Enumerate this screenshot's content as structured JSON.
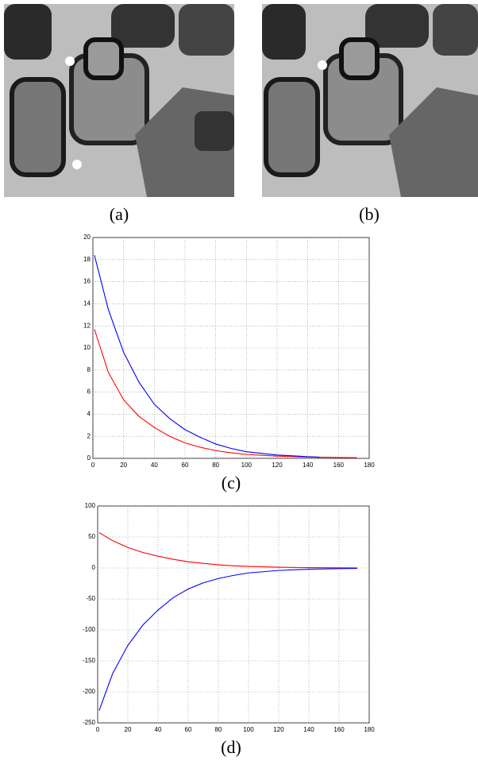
{
  "panels": [
    {
      "label": "(a)"
    },
    {
      "label": "(b)"
    }
  ],
  "chart_data": [
    {
      "type": "line",
      "label": "(c)",
      "x": [
        1,
        10,
        20,
        30,
        40,
        50,
        60,
        70,
        80,
        90,
        100,
        120,
        140,
        148,
        160,
        172
      ],
      "series": [
        {
          "color": "#ff0000",
          "values": [
            11.7,
            7.8,
            5.3,
            3.8,
            2.8,
            2.0,
            1.4,
            1.0,
            0.7,
            0.5,
            0.35,
            0.2,
            0.12,
            0.1,
            0.08,
            0.06
          ]
        },
        {
          "color": "#0000ff",
          "values": [
            18.4,
            13.5,
            9.6,
            6.9,
            4.9,
            3.6,
            2.6,
            1.9,
            1.3,
            0.9,
            0.6,
            0.3,
            0.15,
            0.1,
            null,
            null
          ]
        }
      ],
      "xlim": [
        0,
        180
      ],
      "xticks": [
        0,
        20,
        40,
        60,
        80,
        100,
        120,
        140,
        160,
        180
      ],
      "ylim": [
        0,
        20
      ],
      "yticks": [
        0,
        2,
        4,
        6,
        8,
        10,
        12,
        14,
        16,
        18,
        20
      ],
      "grid": true
    },
    {
      "type": "line",
      "label": "(d)",
      "x": [
        1,
        10,
        20,
        30,
        40,
        50,
        60,
        70,
        80,
        90,
        100,
        120,
        140,
        160,
        172
      ],
      "series": [
        {
          "color": "#ff0000",
          "values": [
            57,
            44,
            33,
            25,
            19,
            14,
            10,
            7.5,
            5,
            3.5,
            2.5,
            1.2,
            0.5,
            0.2,
            0.1
          ]
        },
        {
          "color": "#0000ff",
          "values": [
            -230,
            -170,
            -125,
            -92,
            -68,
            -48,
            -34,
            -24,
            -17,
            -12,
            -8,
            -4,
            -2,
            -1,
            -0.5
          ]
        }
      ],
      "xlim": [
        0,
        180
      ],
      "xticks": [
        0,
        20,
        40,
        60,
        80,
        100,
        120,
        140,
        160,
        180
      ],
      "ylim": [
        -250,
        100
      ],
      "yticks": [
        -250,
        -200,
        -150,
        -100,
        -50,
        0,
        50,
        100
      ],
      "grid": true
    }
  ]
}
